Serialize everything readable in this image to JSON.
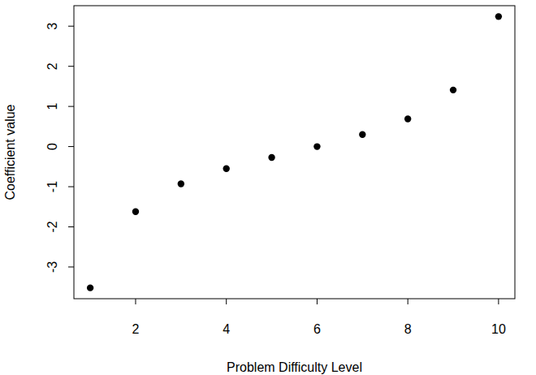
{
  "chart_data": {
    "type": "scatter",
    "x_label": "Problem Difficulty Level",
    "y_label": "Coefficient value",
    "x": [
      1,
      2,
      3,
      4,
      5,
      6,
      7,
      8,
      9,
      10
    ],
    "values": [
      -3.52,
      -1.62,
      -0.93,
      -0.55,
      -0.27,
      0.0,
      0.3,
      0.69,
      1.41,
      3.24
    ],
    "color": "#000000",
    "marker": "circle",
    "xlim": [
      0.64,
      10.36
    ],
    "xticks": [
      2,
      4,
      6,
      8,
      10
    ],
    "ylim": [
      -3.79,
      3.51
    ],
    "yticks": [
      -3,
      -2,
      -1,
      0,
      1,
      2,
      3
    ],
    "grid": false
  }
}
